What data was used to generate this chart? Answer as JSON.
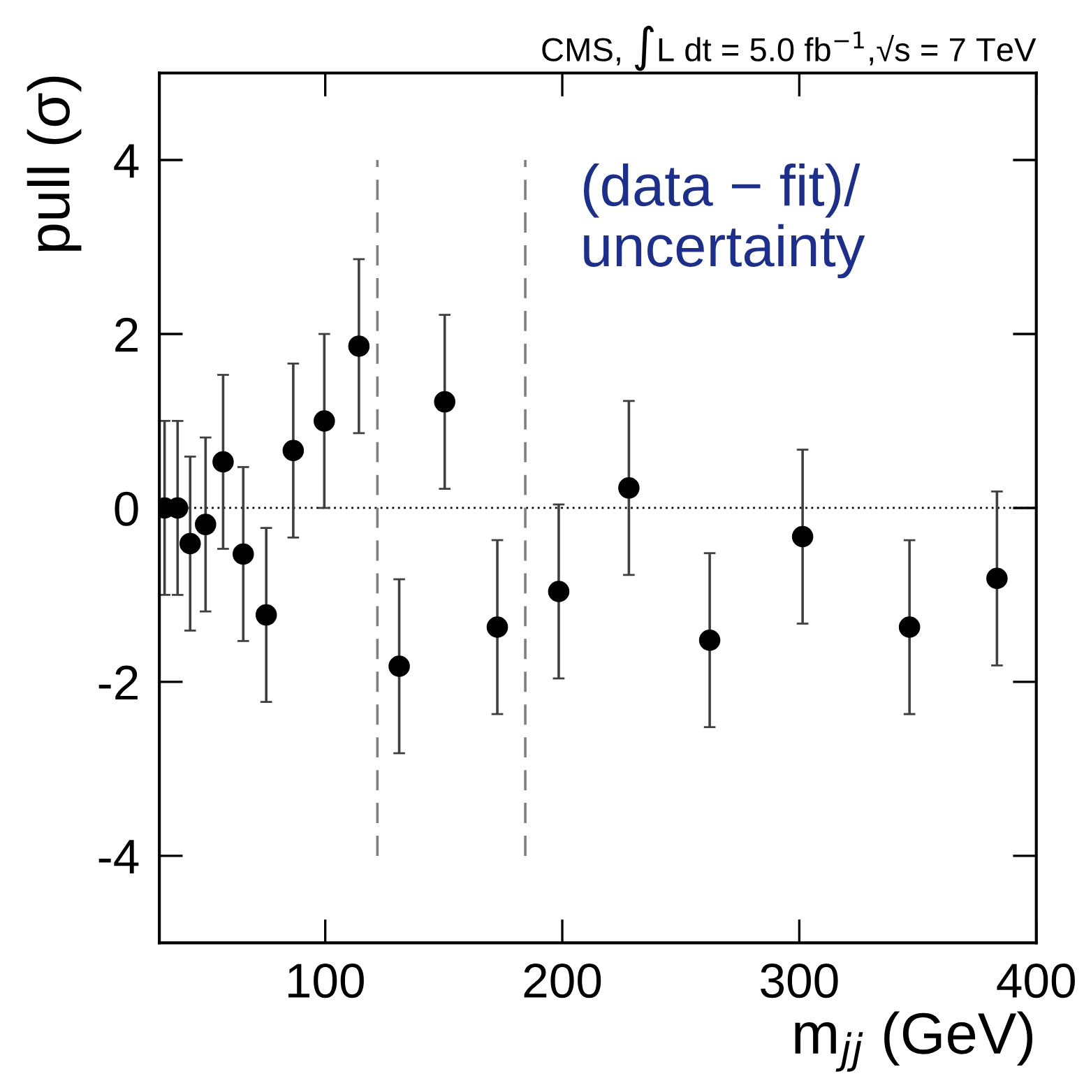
{
  "chart_data": {
    "type": "scatter",
    "title": "CMS, ∫L dt = 5.0 fb$^{−1}$,√s = 7 TeV",
    "xlabel": "m$_{jj}$ (GeV)",
    "ylabel": "pull (σ)",
    "annotations": [
      "(data − fit)/\nuncertainty"
    ],
    "x": [
      32.2,
      37.7,
      43,
      49.5,
      56.9,
      65.4,
      75.1,
      86.5,
      99.6,
      114.2,
      131.2,
      150.4,
      172.6,
      198.5,
      228.1,
      262.2,
      301.4,
      346.5,
      383.4
    ],
    "series": [
      {
        "color": "#000000",
        "values": [
          0,
          0,
          -0.41,
          -0.19,
          0.53,
          -0.53,
          -1.23,
          0.66,
          1.0,
          1.86,
          -1.82,
          1.22,
          -1.37,
          -0.96,
          0.23,
          -1.52,
          -0.33,
          -1.37,
          -0.81
        ],
        "errors": [
          1,
          1,
          1,
          1,
          1,
          1,
          1,
          1,
          1,
          1,
          1,
          1,
          1,
          1,
          1,
          1,
          1,
          1,
          1
        ]
      }
    ],
    "xlim": [
      30,
      400
    ],
    "xticks": [
      100,
      200,
      300,
      400
    ],
    "ylim": [
      -5,
      5
    ],
    "yticks": [
      -4,
      -2,
      0,
      2,
      4
    ],
    "ref_lines": [
      {
        "axis": "y",
        "value": 0,
        "line_style": "dotted",
        "color": "#000000"
      },
      {
        "axis": "x",
        "value": 122,
        "line_style": "dashed",
        "color": "#808080"
      },
      {
        "axis": "x",
        "value": 184.4,
        "line_style": "dashed",
        "color": "#808080"
      }
    ],
    "marker": "circle",
    "grid": false
  }
}
